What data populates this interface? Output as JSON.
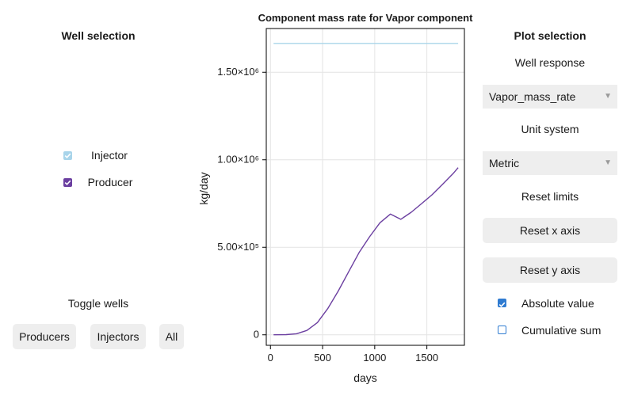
{
  "left_panel": {
    "title": "Well selection",
    "wells": [
      {
        "label": "Injector",
        "checked": true,
        "color": "#a8d4ea"
      },
      {
        "label": "Producer",
        "checked": true,
        "color": "#6b3fa0"
      }
    ],
    "toggle_title": "Toggle wells",
    "buttons": {
      "producers": "Producers",
      "injectors": "Injectors",
      "all": "All"
    }
  },
  "right_panel": {
    "title": "Plot selection",
    "well_response_label": "Well response",
    "well_response_value": "Vapor_mass_rate",
    "unit_system_label": "Unit system",
    "unit_system_value": "Metric",
    "reset_limits_label": "Reset limits",
    "reset_x_label": "Reset x axis",
    "reset_y_label": "Reset y axis",
    "absolute_value_label": "Absolute value",
    "absolute_value_checked": true,
    "cumulative_sum_label": "Cumulative sum",
    "cumulative_sum_checked": false,
    "accent_color": "#2f7bd1"
  },
  "chart_data": {
    "type": "line",
    "title": "Component mass rate for Vapor component",
    "xlabel": "days",
    "ylabel": "kg/day",
    "xlim": [
      -40,
      1860
    ],
    "ylim": [
      -60000,
      1750000
    ],
    "x_ticks": [
      0,
      500,
      1000,
      1500
    ],
    "x_tick_labels": [
      "0",
      "500",
      "1000",
      "1500"
    ],
    "y_ticks": [
      0,
      500000,
      1000000,
      1500000
    ],
    "y_tick_labels": [
      "0",
      "5.00×10⁵",
      "1.00×10⁶",
      "1.50×10⁶"
    ],
    "grid": true,
    "series": [
      {
        "color": "#a8d4ea",
        "x": [
          30,
          1800
        ],
        "y": [
          1665000,
          1665000
        ]
      },
      {
        "color": "#6b3fa0",
        "x": [
          30,
          150,
          250,
          350,
          450,
          550,
          650,
          750,
          850,
          950,
          1050,
          1150,
          1250,
          1350,
          1450,
          1550,
          1650,
          1750,
          1800
        ],
        "y": [
          0,
          1000,
          6000,
          25000,
          70000,
          150000,
          250000,
          360000,
          470000,
          560000,
          640000,
          690000,
          660000,
          700000,
          750000,
          800000,
          860000,
          920000,
          955000
        ]
      }
    ]
  }
}
